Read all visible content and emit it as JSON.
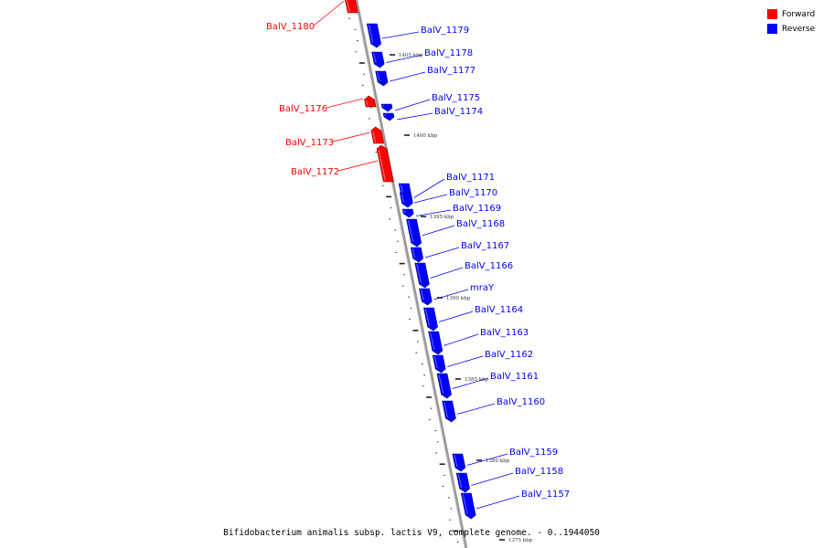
{
  "legend": {
    "forward_label": "Forward",
    "reverse_label": "Reverse",
    "forward_color": "#ff0000",
    "reverse_color": "#0000ff"
  },
  "caption": "Bifidobacterium animalis subsp. lactis V9, complete genome. - 0..1944050",
  "map": {
    "backbone_color": "#999999",
    "tick_labels": [
      "1405 kbp",
      "1400 kbp",
      "1395 kbp",
      "1390 kbp",
      "1385 kbp",
      "1380 kbp",
      "1375 kbp"
    ],
    "genes": [
      {
        "name": "BalV_1180",
        "strand": "forward"
      },
      {
        "name": "BalV_1179",
        "strand": "reverse"
      },
      {
        "name": "BalV_1178",
        "strand": "reverse"
      },
      {
        "name": "BalV_1177",
        "strand": "reverse"
      },
      {
        "name": "BalV_1176",
        "strand": "forward"
      },
      {
        "name": "BalV_1175",
        "strand": "reverse"
      },
      {
        "name": "BalV_1174",
        "strand": "reverse"
      },
      {
        "name": "BalV_1173",
        "strand": "forward"
      },
      {
        "name": "BalV_1172",
        "strand": "forward"
      },
      {
        "name": "BalV_1171",
        "strand": "reverse"
      },
      {
        "name": "BalV_1170",
        "strand": "reverse"
      },
      {
        "name": "BalV_1169",
        "strand": "reverse"
      },
      {
        "name": "BalV_1168",
        "strand": "reverse"
      },
      {
        "name": "BalV_1167",
        "strand": "reverse"
      },
      {
        "name": "BalV_1166",
        "strand": "reverse"
      },
      {
        "name": "mraY",
        "strand": "reverse"
      },
      {
        "name": "BalV_1164",
        "strand": "reverse"
      },
      {
        "name": "BalV_1163",
        "strand": "reverse"
      },
      {
        "name": "BalV_1162",
        "strand": "reverse"
      },
      {
        "name": "BalV_1161",
        "strand": "reverse"
      },
      {
        "name": "BalV_1160",
        "strand": "reverse"
      },
      {
        "name": "BalV_1159",
        "strand": "reverse"
      },
      {
        "name": "BalV_1158",
        "strand": "reverse"
      },
      {
        "name": "BalV_1157",
        "strand": "reverse"
      }
    ]
  }
}
